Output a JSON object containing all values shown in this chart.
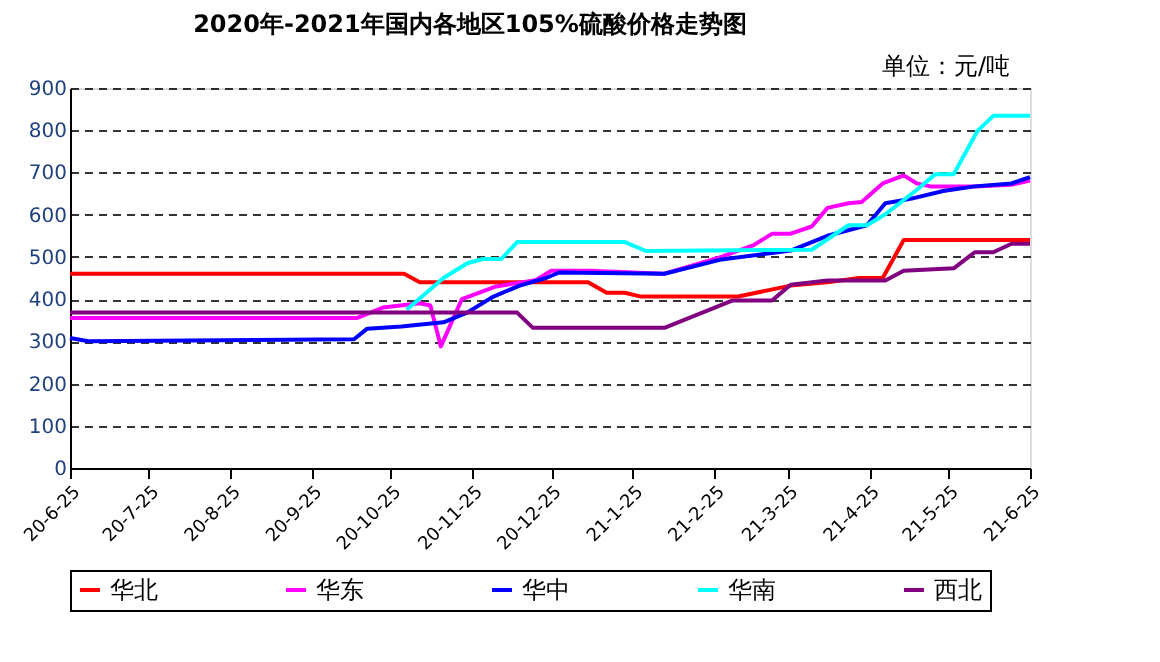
{
  "chart_data": {
    "type": "line",
    "title": "2020年-2021年国内各地区105%硫酸价格走势图",
    "annotations": [
      "单位：元/吨"
    ],
    "xlim": [
      "2020-06-25",
      "2021-06-25"
    ],
    "xticks": [
      {
        "value": "2020-06-25",
        "label": "20-6-25"
      },
      {
        "value": "2020-07-25",
        "label": "20-7-25"
      },
      {
        "value": "2020-08-25",
        "label": "20-8-25"
      },
      {
        "value": "2020-09-25",
        "label": "20-9-25"
      },
      {
        "value": "2020-10-25",
        "label": "20-10-25"
      },
      {
        "value": "2020-11-25",
        "label": "20-11-25"
      },
      {
        "value": "2020-12-25",
        "label": "20-12-25"
      },
      {
        "value": "2021-01-25",
        "label": "21-1-25"
      },
      {
        "value": "2021-02-25",
        "label": "21-2-25"
      },
      {
        "value": "2021-03-25",
        "label": "21-3-25"
      },
      {
        "value": "2021-04-25",
        "label": "21-4-25"
      },
      {
        "value": "2021-05-25",
        "label": "21-5-25"
      },
      {
        "value": "2021-06-25",
        "label": "21-6-25"
      }
    ],
    "ylim": [
      0,
      900
    ],
    "yticks": [
      0,
      100,
      200,
      300,
      400,
      500,
      600,
      700,
      800,
      900
    ],
    "grid": "y",
    "legend": "bottom",
    "marker": "none",
    "line_style": "solid",
    "series": [
      {
        "name": "华北",
        "color": "#ff0000",
        "x": [
          "2020-06-25",
          "2020-10-30",
          "2020-11-05",
          "2021-01-08",
          "2021-01-15",
          "2021-01-22",
          "2021-01-28",
          "2021-03-06",
          "2021-03-26",
          "2021-04-09",
          "2021-04-21",
          "2021-04-30",
          "2021-05-08",
          "2021-06-25"
        ],
        "values": [
          460,
          460,
          440,
          440,
          415,
          415,
          406,
          406,
          432,
          440,
          450,
          450,
          540,
          540
        ]
      },
      {
        "name": "华东",
        "color": "#ff00ff",
        "x": [
          "2020-06-25",
          "2020-10-12",
          "2020-10-22",
          "2020-11-05",
          "2020-11-09",
          "2020-11-13",
          "2020-11-21",
          "2020-12-04",
          "2020-12-19",
          "2020-12-25",
          "2021-01-09",
          "2021-02-06",
          "2021-02-27",
          "2021-03-12",
          "2021-03-19",
          "2021-03-26",
          "2021-04-03",
          "2021-04-09",
          "2021-04-17",
          "2021-04-22",
          "2021-04-30",
          "2021-05-08",
          "2021-05-13",
          "2021-05-18",
          "2021-06-04",
          "2021-06-18",
          "2021-06-25"
        ],
        "values": [
          355,
          355,
          380,
          390,
          385,
          288,
          400,
          430,
          445,
          467,
          467,
          460,
          499,
          528,
          555,
          555,
          572,
          616,
          627,
          630,
          674,
          693,
          674,
          667,
          667,
          671,
          681
        ]
      },
      {
        "name": "华中",
        "color": "#0000ff",
        "x": [
          "2020-06-25",
          "2020-07-02",
          "2020-10-11",
          "2020-10-16",
          "2020-10-29",
          "2020-11-14",
          "2020-11-23",
          "2020-12-03",
          "2020-12-13",
          "2020-12-23",
          "2020-12-28",
          "2021-02-06",
          "2021-02-27",
          "2021-03-26",
          "2021-04-09",
          "2021-04-24",
          "2021-05-01",
          "2021-05-11",
          "2021-05-23",
          "2021-06-04",
          "2021-06-18",
          "2021-06-25"
        ],
        "values": [
          308,
          300,
          305,
          330,
          335,
          345,
          368,
          406,
          432,
          450,
          463,
          460,
          493,
          515,
          550,
          575,
          627,
          638,
          656,
          667,
          674,
          689
        ]
      },
      {
        "name": "华南",
        "color": "#00ffff",
        "x": [
          "2020-10-31",
          "2020-11-14",
          "2020-11-23",
          "2020-11-29",
          "2020-12-06",
          "2020-12-12",
          "2021-01-22",
          "2021-01-30",
          "2021-04-03",
          "2021-04-17",
          "2021-04-24",
          "2021-05-01",
          "2021-05-13",
          "2021-05-20",
          "2021-05-27",
          "2021-06-05",
          "2021-06-11",
          "2021-06-25"
        ],
        "values": [
          375,
          450,
          485,
          495,
          495,
          535,
          535,
          514,
          517,
          575,
          575,
          601,
          659,
          696,
          696,
          798,
          834,
          834
        ]
      },
      {
        "name": "西北",
        "color": "#800080",
        "x": [
          "2020-06-25",
          "2020-12-12",
          "2020-12-18",
          "2021-02-06",
          "2021-03-04",
          "2021-03-19",
          "2021-03-26",
          "2021-04-09",
          "2021-05-01",
          "2021-05-08",
          "2021-05-27",
          "2021-06-04",
          "2021-06-11",
          "2021-06-18",
          "2021-06-25"
        ],
        "values": [
          368,
          368,
          332,
          332,
          397,
          397,
          434,
          444,
          444,
          467,
          473,
          511,
          511,
          531,
          531
        ]
      }
    ]
  }
}
